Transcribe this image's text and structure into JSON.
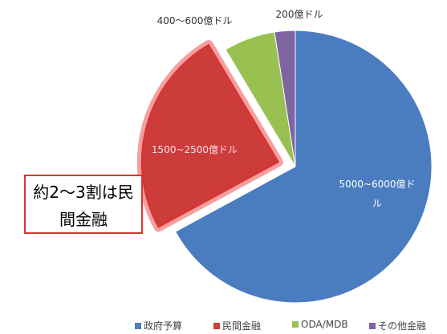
{
  "chart_data": {
    "type": "pie",
    "categories": [
      "政府予算",
      "民間金融",
      "ODA/MDB",
      "その他金融"
    ],
    "values": [
      5500,
      2000,
      500,
      200
    ],
    "value_labels": [
      "5000~6000億ドル",
      "1500~2500億ドル",
      "400～600億ドル",
      "200億ドル"
    ],
    "colors": [
      "#4a7cc0",
      "#cc3c3a",
      "#98c152",
      "#8064a2"
    ],
    "highlight": 1,
    "annotation": "約2～3割は民間金融",
    "legend": "bottom"
  }
}
